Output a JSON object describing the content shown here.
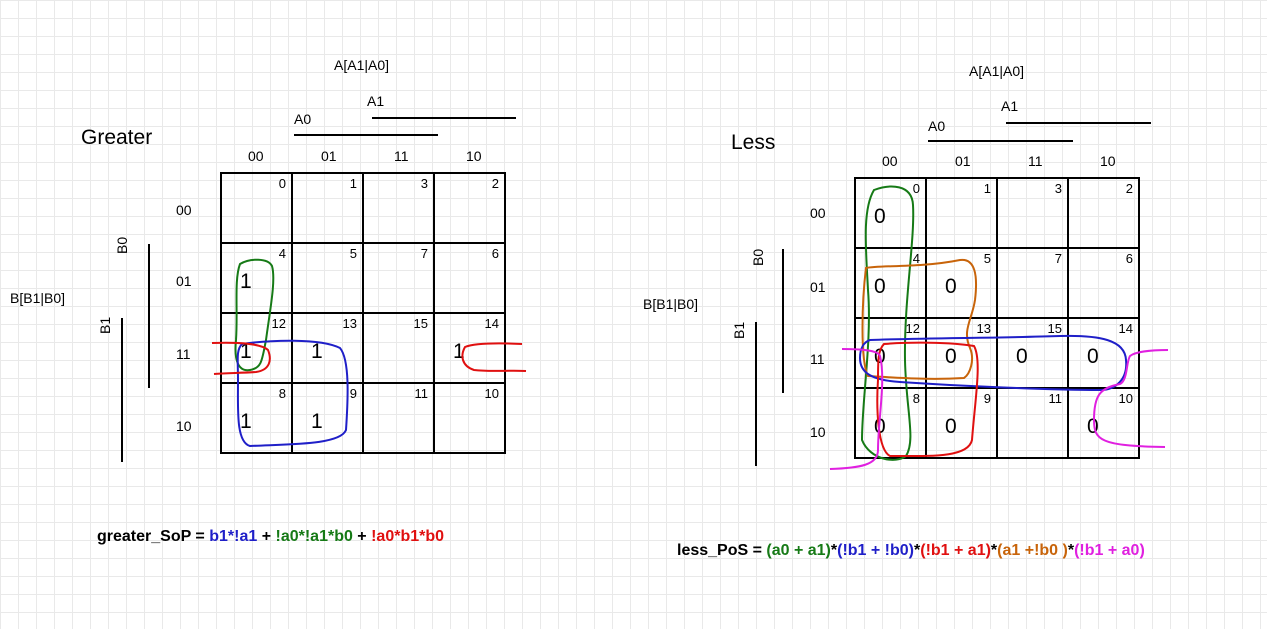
{
  "greater": {
    "title": "Greater",
    "a_label": "A[A1|A0]",
    "b_label": "B[B1|B0]",
    "a1": "A1",
    "a0": "A0",
    "b0": "B0",
    "b1": "B1",
    "col_headers": [
      "00",
      "01",
      "11",
      "10"
    ],
    "row_headers": [
      "00",
      "01",
      "11",
      "10"
    ],
    "cells": [
      [
        {
          "idx": "0",
          "val": ""
        },
        {
          "idx": "1",
          "val": ""
        },
        {
          "idx": "3",
          "val": ""
        },
        {
          "idx": "2",
          "val": ""
        }
      ],
      [
        {
          "idx": "4",
          "val": "1"
        },
        {
          "idx": "5",
          "val": ""
        },
        {
          "idx": "7",
          "val": ""
        },
        {
          "idx": "6",
          "val": ""
        }
      ],
      [
        {
          "idx": "12",
          "val": "1"
        },
        {
          "idx": "13",
          "val": "1"
        },
        {
          "idx": "15",
          "val": ""
        },
        {
          "idx": "14",
          "val": "1"
        }
      ],
      [
        {
          "idx": "8",
          "val": "1"
        },
        {
          "idx": "9",
          "val": "1"
        },
        {
          "idx": "11",
          "val": ""
        },
        {
          "idx": "10",
          "val": ""
        }
      ]
    ],
    "formula": {
      "lhs": "greater_SoP = ",
      "t1": "b1*!a1",
      "op1": " + ",
      "t2": "!a0*!a1*b0",
      "op2": " + ",
      "t3": "!a0*b1*b0"
    }
  },
  "less": {
    "title": "Less",
    "a_label": "A[A1|A0]",
    "b_label": "B[B1|B0]",
    "a1": "A1",
    "a0": "A0",
    "b0": "B0",
    "b1": "B1",
    "col_headers": [
      "00",
      "01",
      "11",
      "10"
    ],
    "row_headers": [
      "00",
      "01",
      "11",
      "10"
    ],
    "cells": [
      [
        {
          "idx": "0",
          "val": "0"
        },
        {
          "idx": "1",
          "val": ""
        },
        {
          "idx": "3",
          "val": ""
        },
        {
          "idx": "2",
          "val": ""
        }
      ],
      [
        {
          "idx": "4",
          "val": "0"
        },
        {
          "idx": "5",
          "val": "0"
        },
        {
          "idx": "7",
          "val": ""
        },
        {
          "idx": "6",
          "val": ""
        }
      ],
      [
        {
          "idx": "12",
          "val": "0"
        },
        {
          "idx": "13",
          "val": "0"
        },
        {
          "idx": "15",
          "val": "0"
        },
        {
          "idx": "14",
          "val": "0"
        }
      ],
      [
        {
          "idx": "8",
          "val": "0"
        },
        {
          "idx": "9",
          "val": "0"
        },
        {
          "idx": "11",
          "val": ""
        },
        {
          "idx": "10",
          "val": "0"
        }
      ]
    ],
    "formula": {
      "lhs": "less_PoS = ",
      "t1": "(a0 + a1)",
      "op1": "*",
      "t2": "(!b1 + !b0)",
      "op2": "*",
      "t3": "(!b1 + a1)",
      "op3": "*",
      "t4": "(a1 +!b0 )",
      "op4": "*",
      "t5": "(!b1 + a0)"
    }
  },
  "colors": {
    "blue": "#1f1fc8",
    "green": "#167a16",
    "red": "#e01010",
    "orange": "#c8640a",
    "magenta": "#e020e0"
  }
}
